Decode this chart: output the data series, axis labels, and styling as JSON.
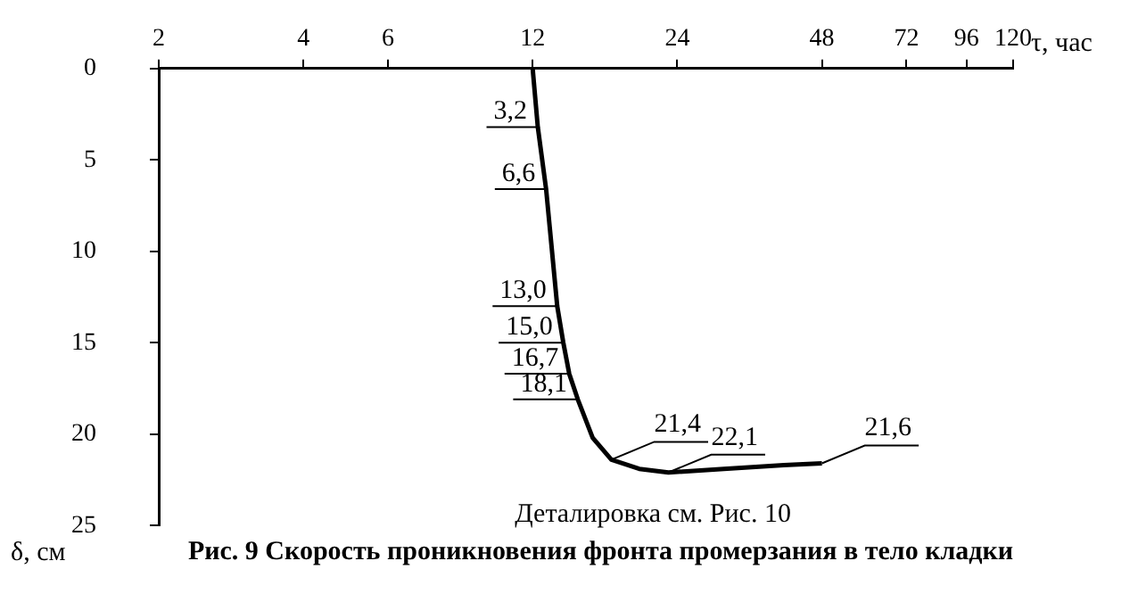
{
  "chart_data": {
    "type": "line",
    "title": "Рис. 9 Скорость проникновения фронта промерзания в тело кладки",
    "xlabel": "τ, час",
    "ylabel": "δ, см",
    "x": [
      12,
      12.3,
      12.8,
      13.5,
      13.9,
      14.3,
      14.9,
      16,
      17.5,
      20,
      23,
      30,
      40,
      48
    ],
    "series": [
      {
        "color": "#000000",
        "values": [
          0,
          3.2,
          6.6,
          13.0,
          15.0,
          16.7,
          18.1,
          20.2,
          21.4,
          21.9,
          22.1,
          21.9,
          21.7,
          21.6
        ]
      }
    ],
    "xlim": [
      2,
      120
    ],
    "xticks": [
      2,
      4,
      6,
      12,
      24,
      48,
      72,
      96,
      120
    ],
    "ylim": [
      25,
      0
    ],
    "yticks": [
      0,
      5,
      10,
      15,
      20,
      25
    ],
    "log": "x",
    "grid": false,
    "legend": false,
    "marker": "none",
    "line_style": "solid",
    "annotations": [
      {
        "text": "3,2",
        "x": 12.3,
        "y": 3.2
      },
      {
        "text": "6,6",
        "x": 12.8,
        "y": 6.6
      },
      {
        "text": "13,0",
        "x": 13.5,
        "y": 13.0
      },
      {
        "text": "15,0",
        "x": 13.9,
        "y": 15.0
      },
      {
        "text": "16,7",
        "x": 14.3,
        "y": 16.7
      },
      {
        "text": "18,1",
        "x": 14.9,
        "y": 18.1
      },
      {
        "text": "21,4",
        "x": 17.5,
        "y": 21.4
      },
      {
        "text": "22,1",
        "x": 23,
        "y": 22.1
      },
      {
        "text": "21,6",
        "x": 48,
        "y": 21.6
      },
      "Деталировка см. Рис. 10"
    ]
  }
}
